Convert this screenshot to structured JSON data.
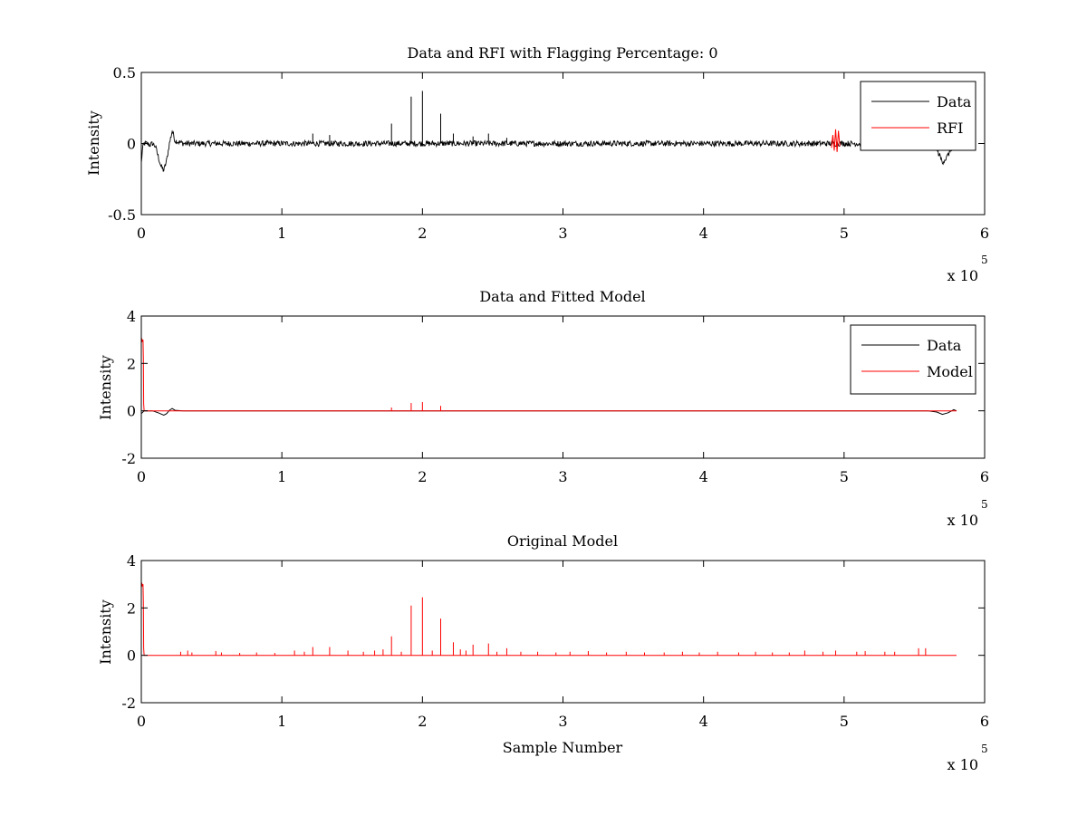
{
  "chart_data": [
    {
      "type": "line",
      "title": "Data and RFI with Flagging Percentage: 0",
      "xlabel": "",
      "ylabel": "Intensity",
      "xlim": [
        0,
        600000
      ],
      "ylim": [
        -0.5,
        0.5
      ],
      "x_ticks": [
        0,
        1,
        2,
        3,
        4,
        5,
        6
      ],
      "y_ticks": [
        -0.5,
        0,
        0.5
      ],
      "x_multiplier": "x 10",
      "x_multiplier_exp": "5",
      "grid": false,
      "legend_position": "top-right",
      "legend": [
        "Data",
        "RFI"
      ],
      "series": [
        {
          "name": "Data",
          "color": "#000000",
          "x": [
            0,
            500,
            1000,
            2000,
            4000,
            6000,
            8000,
            10000,
            12000,
            14000,
            16000,
            18000,
            20000,
            22000,
            24000,
            30000,
            50000,
            100000,
            150000,
            200000,
            300000,
            400000,
            500000,
            550000,
            560000,
            565000,
            570000,
            573000,
            576000,
            580000
          ],
          "y": [
            -0.14,
            -0.08,
            -0.03,
            0,
            0,
            -0.01,
            0,
            -0.02,
            -0.09,
            -0.16,
            -0.19,
            -0.12,
            0.0,
            0.09,
            0.02,
            0,
            0,
            0,
            0,
            0,
            0,
            0,
            0,
            0,
            0,
            -0.02,
            -0.13,
            -0.1,
            -0.04,
            0
          ],
          "noise_amplitude": 0.02,
          "spikes": [
            {
              "x": 122000,
              "y": 0.07
            },
            {
              "x": 134000,
              "y": 0.06
            },
            {
              "x": 178000,
              "y": 0.14
            },
            {
              "x": 192000,
              "y": 0.33
            },
            {
              "x": 200000,
              "y": 0.37
            },
            {
              "x": 213000,
              "y": 0.21
            },
            {
              "x": 222000,
              "y": 0.07
            },
            {
              "x": 236000,
              "y": 0.05
            },
            {
              "x": 247000,
              "y": 0.07
            },
            {
              "x": 260000,
              "y": 0.04
            }
          ]
        },
        {
          "name": "RFI",
          "color": "#ff0000",
          "x": [
            491000,
            492000,
            493000,
            494000,
            495000,
            496000,
            497000
          ],
          "y": [
            -0.03,
            0.06,
            -0.05,
            0.1,
            -0.06,
            0.09,
            -0.02
          ]
        }
      ]
    },
    {
      "type": "line",
      "title": "Data and Fitted Model",
      "xlabel": "",
      "ylabel": "Intensity",
      "xlim": [
        0,
        600000
      ],
      "ylim": [
        -2,
        4
      ],
      "x_ticks": [
        0,
        1,
        2,
        3,
        4,
        5,
        6
      ],
      "y_ticks": [
        -2,
        0,
        2,
        4
      ],
      "x_multiplier": "x 10",
      "x_multiplier_exp": "5",
      "grid": false,
      "legend_position": "top-right",
      "legend": [
        "Data",
        "Model"
      ],
      "series": [
        {
          "name": "Data",
          "color": "#000000",
          "x": [
            0,
            2000,
            8000,
            12000,
            16000,
            18000,
            20000,
            22000,
            24000,
            30000,
            200000,
            400000,
            560000,
            566000,
            570000,
            574000,
            578000,
            580000
          ],
          "y": [
            -0.12,
            0,
            0,
            -0.08,
            -0.18,
            -0.12,
            0.02,
            0.1,
            0.02,
            0,
            0,
            0,
            0,
            -0.05,
            -0.15,
            -0.08,
            0.05,
            0
          ]
        },
        {
          "name": "Model",
          "color": "#ff0000",
          "x": [
            0,
            300,
            600,
            900,
            1200,
            1500,
            1700,
            2000,
            580000
          ],
          "y": [
            3.1,
            2.9,
            3.0,
            2.95,
            3.0,
            2.2,
            0.3,
            0,
            0
          ],
          "spikes": [
            {
              "x": 178000,
              "y": 0.14
            },
            {
              "x": 192000,
              "y": 0.33
            },
            {
              "x": 200000,
              "y": 0.37
            },
            {
              "x": 213000,
              "y": 0.21
            }
          ]
        }
      ]
    },
    {
      "type": "line",
      "title": "Original Model",
      "xlabel": "Sample Number",
      "ylabel": "Intensity",
      "xlim": [
        0,
        600000
      ],
      "ylim": [
        -2,
        4
      ],
      "x_ticks": [
        0,
        1,
        2,
        3,
        4,
        5,
        6
      ],
      "y_ticks": [
        -2,
        0,
        2,
        4
      ],
      "x_multiplier": "x 10",
      "x_multiplier_exp": "5",
      "grid": false,
      "legend_position": "none",
      "legend": [],
      "series": [
        {
          "name": "Model",
          "color": "#ff0000",
          "x": [
            0,
            300,
            600,
            900,
            1200,
            1500,
            1700,
            2000,
            580000
          ],
          "y": [
            3.1,
            2.9,
            3.0,
            2.95,
            3.0,
            2.2,
            0.3,
            0,
            0
          ],
          "spikes": [
            {
              "x": 28000,
              "y": 0.15
            },
            {
              "x": 33000,
              "y": 0.2
            },
            {
              "x": 36000,
              "y": 0.12
            },
            {
              "x": 53000,
              "y": 0.18
            },
            {
              "x": 57000,
              "y": 0.12
            },
            {
              "x": 70000,
              "y": 0.1
            },
            {
              "x": 82000,
              "y": 0.12
            },
            {
              "x": 95000,
              "y": 0.1
            },
            {
              "x": 109000,
              "y": 0.2
            },
            {
              "x": 116000,
              "y": 0.15
            },
            {
              "x": 122000,
              "y": 0.35
            },
            {
              "x": 134000,
              "y": 0.35
            },
            {
              "x": 147000,
              "y": 0.2
            },
            {
              "x": 158000,
              "y": 0.15
            },
            {
              "x": 166000,
              "y": 0.2
            },
            {
              "x": 172000,
              "y": 0.25
            },
            {
              "x": 178000,
              "y": 0.8
            },
            {
              "x": 185000,
              "y": 0.15
            },
            {
              "x": 192000,
              "y": 2.1
            },
            {
              "x": 200000,
              "y": 2.45
            },
            {
              "x": 207000,
              "y": 0.2
            },
            {
              "x": 213000,
              "y": 1.55
            },
            {
              "x": 222000,
              "y": 0.55
            },
            {
              "x": 227000,
              "y": 0.25
            },
            {
              "x": 231000,
              "y": 0.2
            },
            {
              "x": 236000,
              "y": 0.45
            },
            {
              "x": 247000,
              "y": 0.5
            },
            {
              "x": 253000,
              "y": 0.15
            },
            {
              "x": 260000,
              "y": 0.3
            },
            {
              "x": 270000,
              "y": 0.15
            },
            {
              "x": 282000,
              "y": 0.15
            },
            {
              "x": 295000,
              "y": 0.12
            },
            {
              "x": 305000,
              "y": 0.15
            },
            {
              "x": 318000,
              "y": 0.18
            },
            {
              "x": 331000,
              "y": 0.12
            },
            {
              "x": 345000,
              "y": 0.15
            },
            {
              "x": 358000,
              "y": 0.12
            },
            {
              "x": 372000,
              "y": 0.12
            },
            {
              "x": 385000,
              "y": 0.15
            },
            {
              "x": 397000,
              "y": 0.12
            },
            {
              "x": 410000,
              "y": 0.15
            },
            {
              "x": 425000,
              "y": 0.12
            },
            {
              "x": 437000,
              "y": 0.15
            },
            {
              "x": 449000,
              "y": 0.12
            },
            {
              "x": 461000,
              "y": 0.12
            },
            {
              "x": 472000,
              "y": 0.2
            },
            {
              "x": 485000,
              "y": 0.15
            },
            {
              "x": 494000,
              "y": 0.2
            },
            {
              "x": 509000,
              "y": 0.15
            },
            {
              "x": 515000,
              "y": 0.18
            },
            {
              "x": 529000,
              "y": 0.15
            },
            {
              "x": 536000,
              "y": 0.15
            },
            {
              "x": 553000,
              "y": 0.3
            },
            {
              "x": 558000,
              "y": 0.3
            }
          ]
        }
      ]
    }
  ]
}
